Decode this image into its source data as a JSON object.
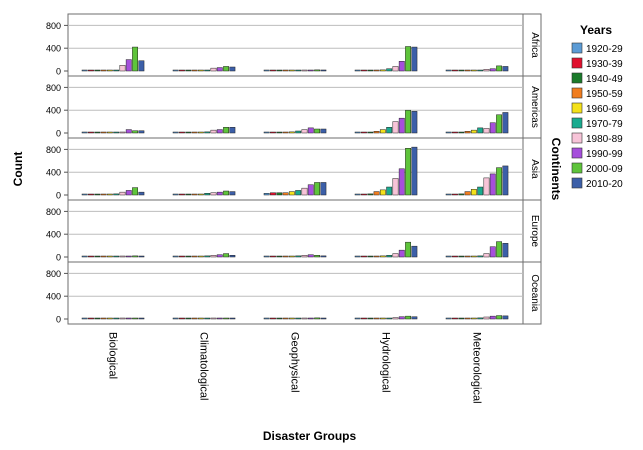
{
  "chart_data": {
    "type": "bar",
    "xlabel": "Disaster Groups",
    "ylabel": "Count",
    "facet_label": "Continents",
    "legend_title": "Years",
    "legend_position": "right",
    "grid": true,
    "ylim": [
      0,
      1000
    ],
    "yticks": [
      0,
      400,
      800
    ],
    "categories": [
      "Biological",
      "Climatological",
      "Geophysical",
      "Hydrological",
      "Meteorological"
    ],
    "series": [
      {
        "name": "1920-29",
        "color": "#5b9bd5"
      },
      {
        "name": "1930-39",
        "color": "#e0102e"
      },
      {
        "name": "1940-49",
        "color": "#1a7a2a"
      },
      {
        "name": "1950-59",
        "color": "#f07d1f"
      },
      {
        "name": "1960-69",
        "color": "#f4e11a"
      },
      {
        "name": "1970-79",
        "color": "#1aab8f"
      },
      {
        "name": "1980-89",
        "color": "#f7c4d8"
      },
      {
        "name": "1990-99",
        "color": "#a64fdc"
      },
      {
        "name": "2000-09",
        "color": "#5ec43a"
      },
      {
        "name": "2010-20",
        "color": "#3c5fa8"
      }
    ],
    "panels": [
      {
        "name": "Africa",
        "values": [
          [
            0,
            0,
            0,
            3,
            5,
            8,
            100,
            200,
            420,
            180
          ],
          [
            0,
            0,
            0,
            5,
            8,
            15,
            50,
            60,
            80,
            70
          ],
          [
            0,
            0,
            0,
            3,
            5,
            8,
            12,
            15,
            20,
            18
          ],
          [
            0,
            0,
            0,
            10,
            20,
            40,
            80,
            170,
            430,
            420
          ],
          [
            0,
            0,
            0,
            5,
            10,
            15,
            30,
            40,
            90,
            80
          ]
        ]
      },
      {
        "name": "Americas",
        "values": [
          [
            0,
            0,
            0,
            3,
            5,
            10,
            15,
            60,
            40,
            40
          ],
          [
            0,
            0,
            0,
            5,
            10,
            20,
            50,
            60,
            100,
            100
          ],
          [
            5,
            5,
            10,
            15,
            20,
            35,
            60,
            90,
            70,
            70
          ],
          [
            5,
            5,
            10,
            30,
            60,
            100,
            200,
            260,
            400,
            380
          ],
          [
            0,
            5,
            15,
            30,
            50,
            90,
            80,
            180,
            320,
            360
          ]
        ]
      },
      {
        "name": "Asia",
        "values": [
          [
            0,
            0,
            0,
            0,
            5,
            20,
            50,
            80,
            130,
            50
          ],
          [
            0,
            0,
            0,
            5,
            10,
            30,
            40,
            50,
            70,
            60
          ],
          [
            30,
            40,
            40,
            40,
            60,
            80,
            120,
            180,
            220,
            220
          ],
          [
            5,
            5,
            20,
            60,
            90,
            140,
            290,
            460,
            820,
            840
          ],
          [
            5,
            10,
            20,
            60,
            100,
            140,
            300,
            370,
            480,
            510
          ]
        ]
      },
      {
        "name": "Europe",
        "values": [
          [
            0,
            0,
            0,
            0,
            0,
            5,
            5,
            10,
            20,
            15
          ],
          [
            0,
            0,
            0,
            5,
            10,
            20,
            30,
            40,
            60,
            30
          ],
          [
            0,
            0,
            0,
            5,
            10,
            20,
            30,
            40,
            30,
            20
          ],
          [
            0,
            0,
            0,
            10,
            20,
            30,
            60,
            120,
            260,
            190
          ],
          [
            0,
            0,
            0,
            5,
            10,
            20,
            60,
            180,
            270,
            240
          ]
        ]
      },
      {
        "name": "Oceania",
        "values": [
          [
            0,
            0,
            0,
            0,
            0,
            0,
            5,
            10,
            15,
            10
          ],
          [
            0,
            0,
            0,
            0,
            5,
            5,
            8,
            10,
            15,
            10
          ],
          [
            0,
            0,
            0,
            0,
            5,
            8,
            10,
            15,
            20,
            15
          ],
          [
            0,
            0,
            0,
            5,
            8,
            15,
            25,
            40,
            50,
            40
          ],
          [
            0,
            0,
            0,
            5,
            10,
            20,
            35,
            50,
            60,
            55
          ]
        ]
      }
    ]
  }
}
